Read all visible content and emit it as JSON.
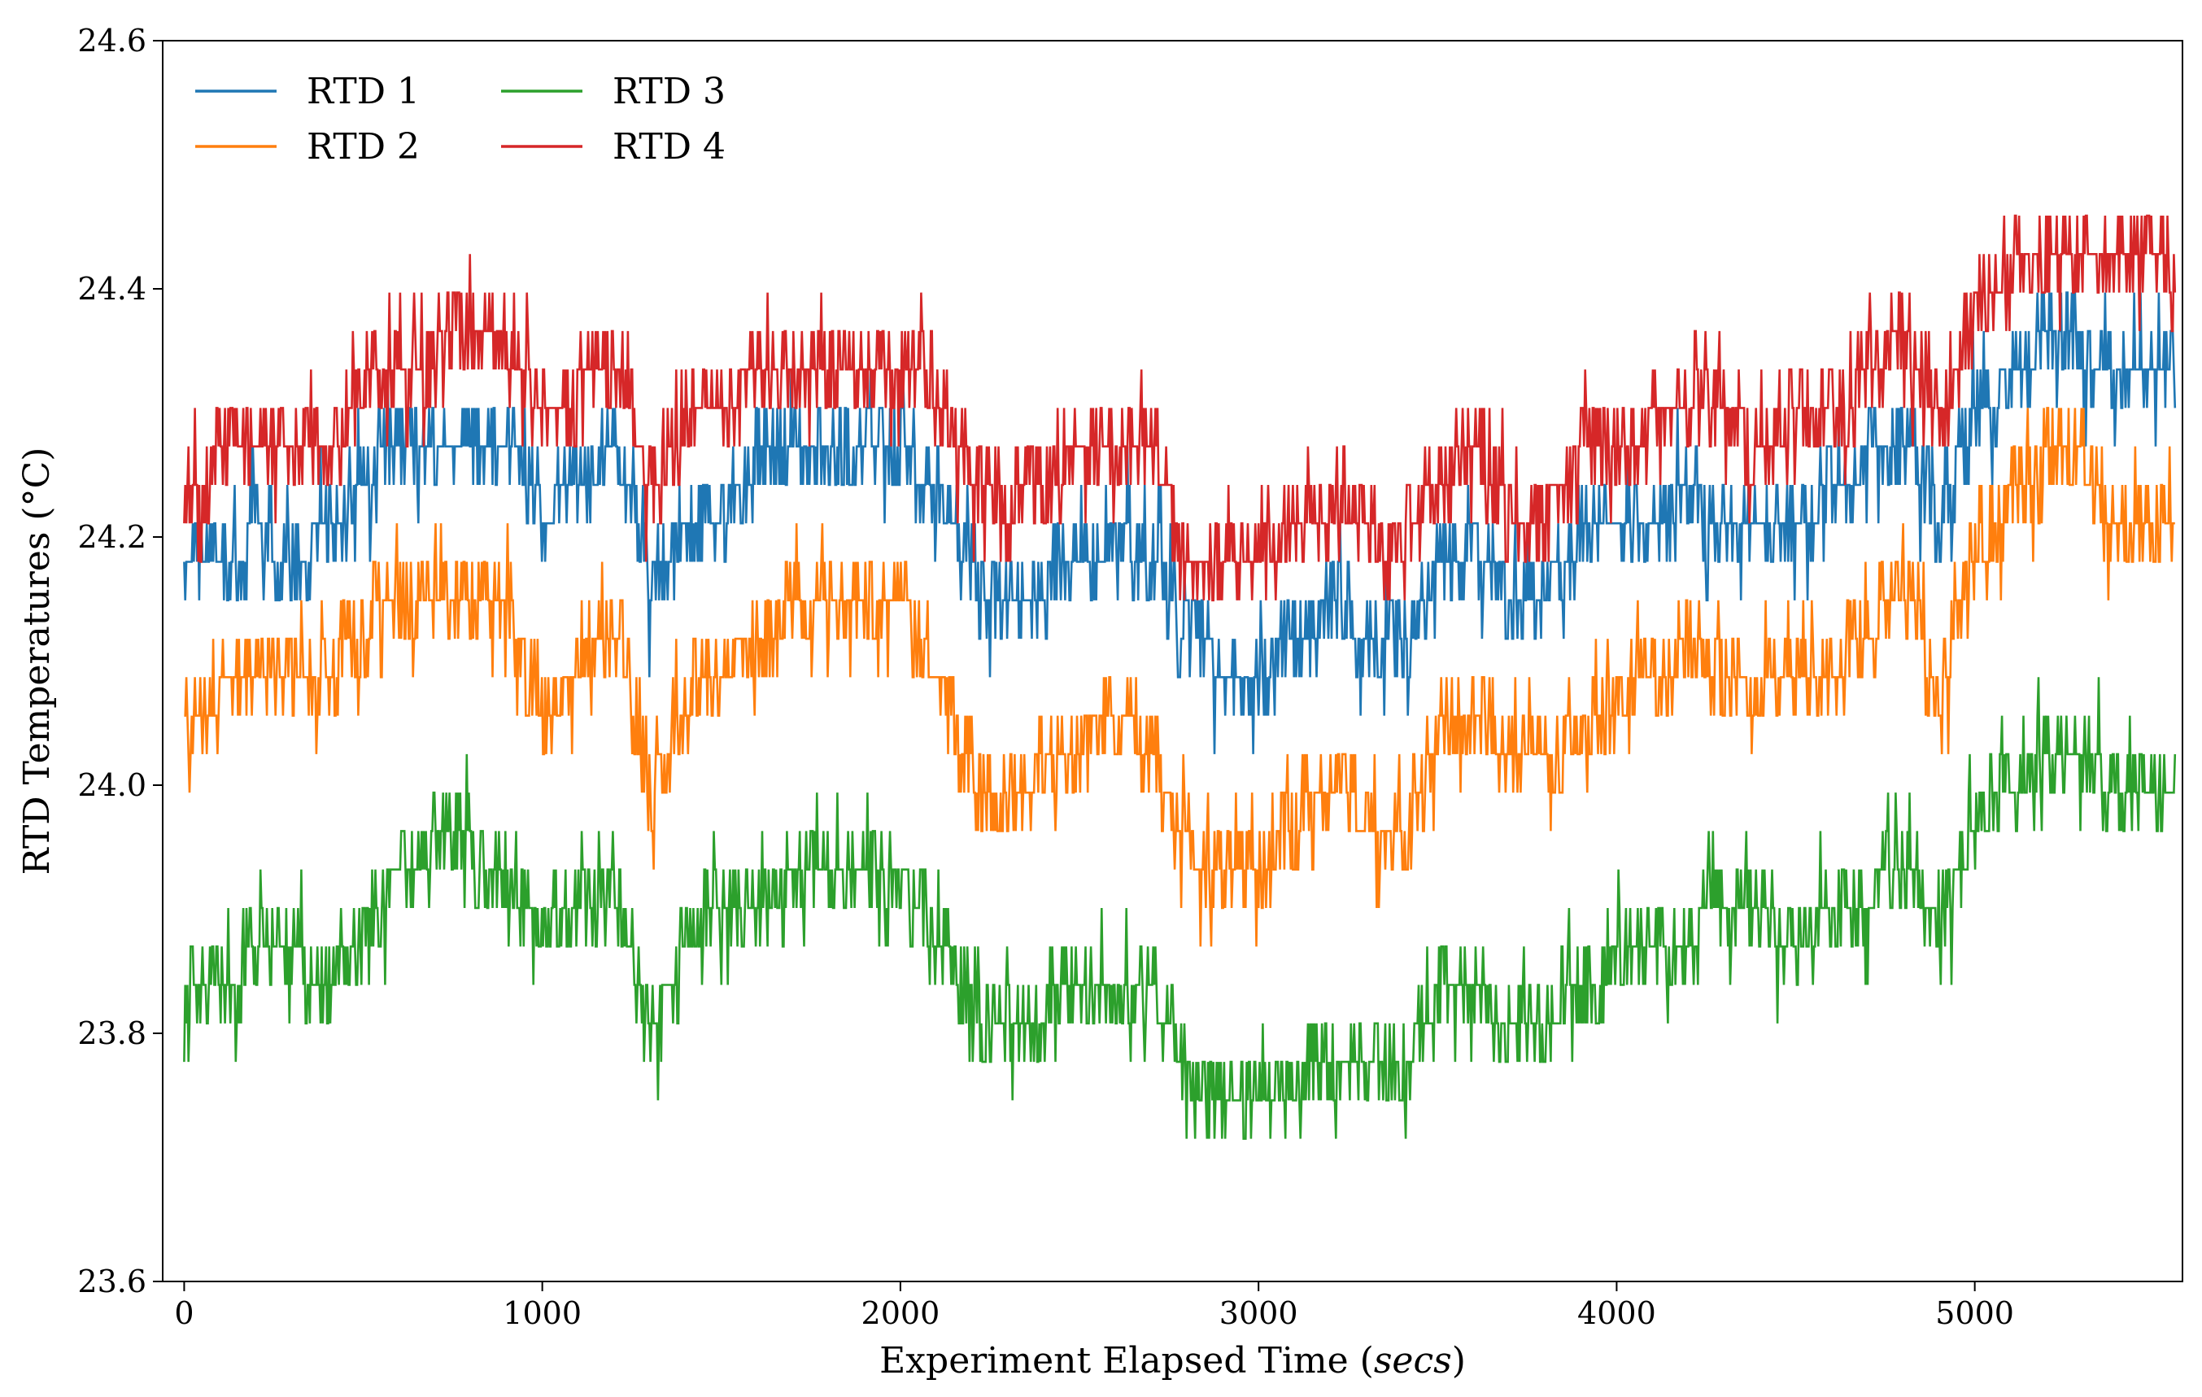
{
  "chart_data": {
    "type": "line",
    "title": "",
    "xlabel_prefix": "Experiment Elapsed Time (",
    "xlabel_unit": "secs",
    "xlabel_suffix": ")",
    "ylabel": "RTD Temperatures (°C)",
    "xlim": [
      -60,
      5580
    ],
    "ylim": [
      23.6,
      24.6
    ],
    "xticks": [
      0,
      1000,
      2000,
      3000,
      4000,
      5000
    ],
    "xtick_labels": [
      "0",
      "1000",
      "2000",
      "3000",
      "4000",
      "5000"
    ],
    "yticks": [
      23.6,
      23.8,
      24.0,
      24.2,
      24.4,
      24.6
    ],
    "ytick_labels": [
      "23.6",
      "23.8",
      "24.0",
      "24.2",
      "24.4",
      "24.6"
    ],
    "grid": false,
    "legend": {
      "placement": "top-left",
      "columns": 2
    },
    "noise_step": 0.031,
    "series": [
      {
        "name": "RTD 1",
        "color": "#1f77b4",
        "x": [
          0,
          100,
          200,
          300,
          400,
          500,
          600,
          700,
          800,
          900,
          1000,
          1100,
          1200,
          1300,
          1400,
          1500,
          1600,
          1700,
          1800,
          1900,
          2000,
          2100,
          2200,
          2300,
          2400,
          2500,
          2600,
          2700,
          2800,
          2900,
          3000,
          3100,
          3200,
          3300,
          3400,
          3500,
          3600,
          3700,
          3800,
          3900,
          4000,
          4100,
          4200,
          4300,
          4400,
          4500,
          4600,
          4700,
          4800,
          4900,
          5000,
          5100,
          5200,
          5300,
          5400,
          5500,
          5560
        ],
        "y": [
          24.17,
          24.18,
          24.2,
          24.19,
          24.2,
          24.25,
          24.27,
          24.27,
          24.28,
          24.28,
          24.22,
          24.24,
          24.26,
          24.16,
          24.22,
          24.22,
          24.26,
          24.27,
          24.27,
          24.28,
          24.27,
          24.24,
          24.17,
          24.14,
          24.16,
          24.18,
          24.2,
          24.19,
          24.11,
          24.1,
          24.08,
          24.12,
          24.14,
          24.13,
          24.12,
          24.17,
          24.2,
          24.16,
          24.16,
          24.2,
          24.2,
          24.22,
          24.23,
          24.22,
          24.21,
          24.22,
          24.23,
          24.26,
          24.28,
          24.22,
          24.3,
          24.33,
          24.36,
          24.35,
          24.34,
          24.33,
          24.33
        ]
      },
      {
        "name": "RTD 2",
        "color": "#ff7f0e",
        "x": [
          0,
          100,
          200,
          300,
          400,
          500,
          600,
          700,
          800,
          900,
          1000,
          1100,
          1200,
          1300,
          1400,
          1500,
          1600,
          1700,
          1800,
          1900,
          2000,
          2100,
          2200,
          2300,
          2400,
          2500,
          2600,
          2700,
          2800,
          2900,
          3000,
          3100,
          3200,
          3300,
          3400,
          3500,
          3600,
          3700,
          3800,
          3900,
          4000,
          4100,
          4200,
          4300,
          4400,
          4500,
          4600,
          4700,
          4800,
          4900,
          5000,
          5100,
          5200,
          5300,
          5400,
          5500,
          5560
        ],
        "y": [
          24.03,
          24.07,
          24.09,
          24.1,
          24.09,
          24.13,
          24.15,
          24.15,
          24.16,
          24.15,
          24.06,
          24.08,
          24.14,
          24.0,
          24.07,
          24.09,
          24.12,
          24.15,
          24.16,
          24.16,
          24.15,
          24.09,
          24.01,
          23.98,
          24.02,
          24.04,
          24.06,
          24.03,
          23.95,
          23.94,
          23.92,
          23.97,
          24.0,
          23.97,
          23.95,
          24.04,
          24.07,
          24.02,
          24.02,
          24.06,
          24.06,
          24.09,
          24.11,
          24.09,
          24.07,
          24.09,
          24.09,
          24.12,
          24.17,
          24.06,
          24.19,
          24.23,
          24.26,
          24.26,
          24.21,
          24.2,
          24.2
        ]
      },
      {
        "name": "RTD 3",
        "color": "#2ca02c",
        "x": [
          0,
          100,
          200,
          300,
          400,
          500,
          600,
          700,
          800,
          900,
          1000,
          1100,
          1200,
          1300,
          1400,
          1500,
          1600,
          1700,
          1800,
          1900,
          2000,
          2100,
          2200,
          2300,
          2400,
          2500,
          2600,
          2700,
          2800,
          2900,
          3000,
          3100,
          3200,
          3300,
          3400,
          3500,
          3600,
          3700,
          3800,
          3900,
          4000,
          4100,
          4200,
          4300,
          4400,
          4500,
          4600,
          4700,
          4800,
          4900,
          5000,
          5100,
          5200,
          5300,
          5400,
          5500,
          5560
        ],
        "y": [
          23.82,
          23.84,
          23.86,
          23.86,
          23.84,
          23.89,
          23.93,
          23.95,
          23.95,
          23.93,
          23.88,
          23.9,
          23.92,
          23.8,
          23.87,
          23.9,
          23.9,
          23.92,
          23.93,
          23.93,
          23.93,
          23.88,
          23.83,
          23.8,
          23.82,
          23.84,
          23.85,
          23.84,
          23.76,
          23.76,
          23.75,
          23.76,
          23.79,
          23.78,
          23.76,
          23.83,
          23.84,
          23.8,
          23.8,
          23.84,
          23.86,
          23.87,
          23.88,
          23.9,
          23.89,
          23.88,
          23.89,
          23.91,
          23.94,
          23.88,
          23.97,
          23.99,
          24.02,
          24.02,
          24.0,
          24.0,
          24.0
        ]
      },
      {
        "name": "RTD 4",
        "color": "#d62728",
        "x": [
          0,
          100,
          200,
          300,
          400,
          500,
          600,
          700,
          800,
          900,
          1000,
          1100,
          1200,
          1300,
          1400,
          1500,
          1600,
          1700,
          1800,
          1900,
          2000,
          2100,
          2200,
          2300,
          2400,
          2500,
          2600,
          2700,
          2800,
          2900,
          3000,
          3100,
          3200,
          3300,
          3400,
          3500,
          3600,
          3700,
          3800,
          3900,
          4000,
          4100,
          4200,
          4300,
          4400,
          4500,
          4600,
          4700,
          4800,
          4900,
          5000,
          5100,
          5200,
          5300,
          5400,
          5500,
          5560
        ],
        "y": [
          24.25,
          24.26,
          24.26,
          24.26,
          24.26,
          24.32,
          24.35,
          24.35,
          24.36,
          24.35,
          24.3,
          24.32,
          24.34,
          24.24,
          24.29,
          24.3,
          24.34,
          24.35,
          24.35,
          24.35,
          24.35,
          24.31,
          24.25,
          24.22,
          24.25,
          24.27,
          24.28,
          24.28,
          24.17,
          24.17,
          24.19,
          24.2,
          24.2,
          24.2,
          24.19,
          24.25,
          24.27,
          24.22,
          24.22,
          24.26,
          24.27,
          24.29,
          24.3,
          24.3,
          24.28,
          24.29,
          24.3,
          24.33,
          24.36,
          24.3,
          24.38,
          24.41,
          24.44,
          24.44,
          24.42,
          24.42,
          24.41
        ]
      }
    ]
  }
}
